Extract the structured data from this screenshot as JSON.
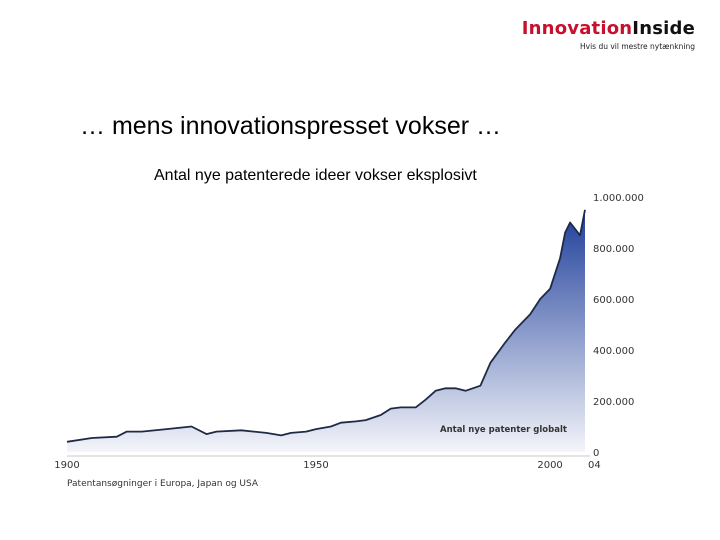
{
  "brand": {
    "name_part1": "Innovation",
    "name_part2": "Inside",
    "tagline": "Hvis du vil mestre nytænkning",
    "colors": {
      "accent": "#c8102e",
      "dark": "#111111"
    }
  },
  "slide": {
    "title": "… mens innovationspresset vokser …"
  },
  "chart_data": {
    "type": "area",
    "title": "Antal nye patenterede ideer vokser eksplosivt",
    "series": [
      {
        "name": "Antal nye patenter globalt",
        "x": [
          1900,
          1905,
          1910,
          1912,
          1915,
          1920,
          1925,
          1928,
          1930,
          1935,
          1940,
          1943,
          1945,
          1948,
          1950,
          1953,
          1955,
          1958,
          1960,
          1963,
          1965,
          1967,
          1970,
          1972,
          1974,
          1976,
          1978,
          1980,
          1983,
          1985,
          1988,
          1990,
          1993,
          1995,
          1997,
          1999,
          2000,
          2001,
          2003,
          2004
        ],
        "y": [
          40000,
          55000,
          60000,
          80000,
          80000,
          90000,
          100000,
          70000,
          80000,
          85000,
          75000,
          65000,
          75000,
          80000,
          90000,
          100000,
          115000,
          120000,
          125000,
          145000,
          170000,
          175000,
          175000,
          205000,
          240000,
          250000,
          250000,
          240000,
          260000,
          350000,
          430000,
          480000,
          540000,
          600000,
          640000,
          760000,
          860000,
          900000,
          850000,
          950000
        ]
      }
    ],
    "xticks": [
      "1900",
      "1950",
      "2000",
      "04"
    ],
    "yticks": [
      "0",
      "200.000",
      "400.000",
      "600.000",
      "800.000",
      "1.000.000"
    ],
    "xlim": [
      1900,
      2004
    ],
    "ylim": [
      0,
      1000000
    ],
    "caption": "Patentansøgninger i Europa, Japan og USA",
    "fill_colors": {
      "top": "#1e3e9a",
      "bottom": "#f4f5fa"
    },
    "line_color": "#1f2a44",
    "grid": false
  }
}
